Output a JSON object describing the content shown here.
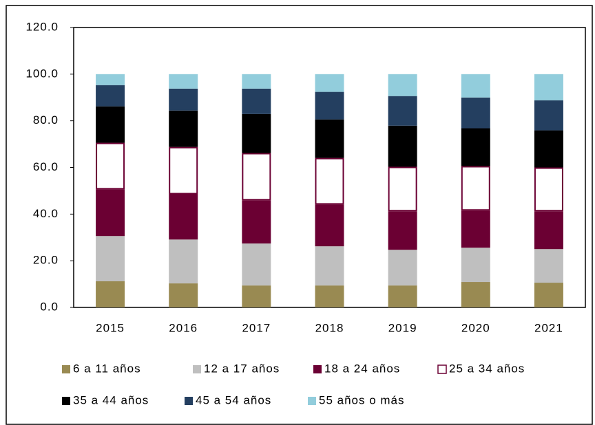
{
  "chart_data": {
    "type": "stacked_bar",
    "categories": [
      "2015",
      "2016",
      "2017",
      "2018",
      "2019",
      "2020",
      "2021"
    ],
    "series": [
      {
        "name": "6 a 11 años",
        "color": "#998a52",
        "values": [
          11.2,
          10.3,
          9.4,
          9.4,
          9.4,
          10.9,
          10.6
        ]
      },
      {
        "name": "12 a 17 años",
        "color": "#bfbfbf",
        "values": [
          19.4,
          18.8,
          18.0,
          16.8,
          15.3,
          14.7,
          14.4
        ]
      },
      {
        "name": "18 a 24 años",
        "color": "#6b0033",
        "values": [
          20.0,
          19.4,
          18.5,
          17.9,
          16.5,
          15.9,
          16.2
        ]
      },
      {
        "name": "25 a 34 años",
        "color": "#ffffff",
        "edgecolor": "#6b0033",
        "values": [
          20.0,
          20.3,
          20.3,
          20.0,
          19.1,
          19.1,
          18.8
        ]
      },
      {
        "name": "35 a 44 años",
        "color": "#000000",
        "values": [
          15.6,
          15.6,
          16.7,
          16.5,
          17.6,
          16.2,
          15.9
        ]
      },
      {
        "name": "45 a 54 años",
        "color": "#243f60",
        "values": [
          9.1,
          9.4,
          10.9,
          11.8,
          12.7,
          13.2,
          12.9
        ]
      },
      {
        "name": "55 años o más",
        "color": "#92cddc",
        "values": [
          4.7,
          6.2,
          6.2,
          7.6,
          9.4,
          10.0,
          11.2
        ]
      }
    ],
    "ylim": [
      0,
      120
    ],
    "yticks": [
      {
        "value": 0,
        "label": "0.0"
      },
      {
        "value": 20,
        "label": "20.0"
      },
      {
        "value": 40,
        "label": "40.0"
      },
      {
        "value": 60,
        "label": "60.0"
      },
      {
        "value": 80,
        "label": "80.0"
      },
      {
        "value": 100,
        "label": "100.0"
      },
      {
        "value": 120,
        "label": "120.0"
      }
    ],
    "legend": "bottom"
  }
}
